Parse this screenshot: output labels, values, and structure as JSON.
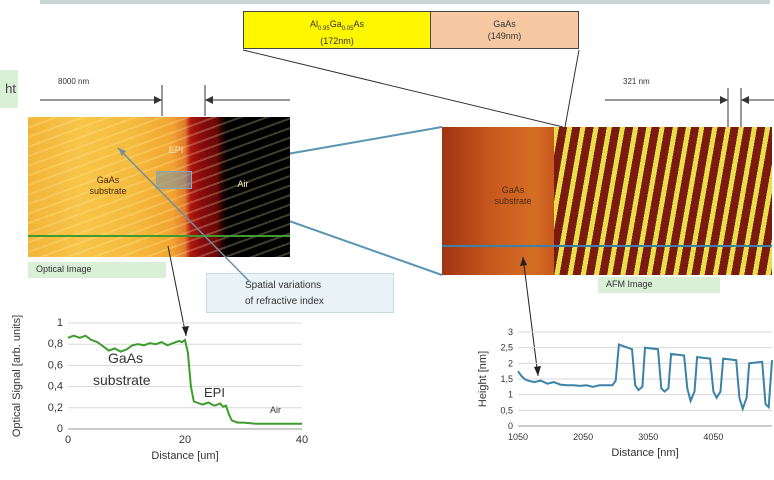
{
  "layers": {
    "algaas_prefix": "Al",
    "algaas_sub1": "0.95",
    "algaas_mid": "Ga",
    "algaas_sub2": "0.05",
    "algaas_suffix": "As",
    "algaas_thickness": "(172nm)",
    "gaas_name": "GaAs",
    "gaas_thickness": "(149nm)"
  },
  "side_badge_text": "ht",
  "optical": {
    "dimension_label": "8000 nm",
    "substrate_label_line1": "GaAs",
    "substrate_label_line2": "substrate",
    "epi_label": "EPI",
    "air_label": "Air",
    "caption": "Optical  Image"
  },
  "afm": {
    "dimension_label": "321 nm",
    "substrate_label_line1": "GaAs",
    "substrate_label_line2": "substrate",
    "caption": "AFM Image"
  },
  "callout": {
    "line1": "Spatial variations",
    "line2": "of refractive index"
  },
  "colors": {
    "optical_line": "#3e9b2e",
    "afm_line": "#3b82a6",
    "algaas_fill": "#fff700",
    "gaas_fill": "#f6c9a3",
    "caption_fill": "#d9efd6"
  },
  "chart_data": [
    {
      "type": "line",
      "ylabel": "Optical Signal [arb. units]",
      "xlabel": "Distance [um]",
      "xlim": [
        0,
        40
      ],
      "ylim": [
        0,
        1
      ],
      "xticks": [
        "0",
        "20",
        "40"
      ],
      "yticks": [
        "0",
        "0,2",
        "0,4",
        "0,6",
        "0,8",
        "1"
      ],
      "annotations": [
        "GaAs",
        "substrate",
        "EPI",
        "Air"
      ],
      "series": [
        {
          "x": [
            0,
            1,
            2,
            3,
            4,
            5,
            6,
            7,
            8,
            9,
            10,
            11,
            12,
            13,
            14,
            15,
            16,
            17,
            18,
            19,
            19.5,
            20,
            20.5,
            21,
            21.5,
            22,
            23,
            24,
            25,
            26,
            26.5,
            27,
            27.5,
            28,
            29,
            30,
            32,
            34,
            36,
            38,
            40
          ],
          "y": [
            0.86,
            0.88,
            0.86,
            0.88,
            0.84,
            0.82,
            0.78,
            0.74,
            0.76,
            0.73,
            0.75,
            0.79,
            0.8,
            0.79,
            0.81,
            0.8,
            0.82,
            0.79,
            0.81,
            0.83,
            0.82,
            0.84,
            0.72,
            0.4,
            0.26,
            0.25,
            0.23,
            0.25,
            0.22,
            0.24,
            0.21,
            0.22,
            0.14,
            0.08,
            0.06,
            0.06,
            0.05,
            0.05,
            0.05,
            0.05,
            0.05
          ]
        }
      ]
    },
    {
      "type": "line",
      "ylabel": "Height [nm]",
      "xlabel": "Distance [nm]",
      "xlim": [
        1050,
        4950
      ],
      "ylim": [
        0,
        3
      ],
      "xticks": [
        "1050",
        "2050",
        "3050",
        "4050"
      ],
      "yticks": [
        "0",
        "0,5",
        "1",
        "1,5",
        "2",
        "2,5",
        "3"
      ],
      "series": [
        {
          "x": [
            1050,
            1100,
            1150,
            1200,
            1300,
            1400,
            1500,
            1600,
            1700,
            1800,
            1900,
            2000,
            2100,
            2200,
            2300,
            2400,
            2500,
            2550,
            2600,
            2800,
            2850,
            2900,
            2960,
            3000,
            3200,
            3250,
            3300,
            3360,
            3400,
            3600,
            3650,
            3700,
            3760,
            3800,
            4000,
            4050,
            4100,
            4160,
            4200,
            4400,
            4450,
            4500,
            4560,
            4600,
            4800,
            4850,
            4900,
            4950
          ],
          "y": [
            1.75,
            1.6,
            1.5,
            1.45,
            1.4,
            1.45,
            1.35,
            1.4,
            1.32,
            1.3,
            1.3,
            1.28,
            1.3,
            1.25,
            1.3,
            1.3,
            1.3,
            1.45,
            2.6,
            2.45,
            1.3,
            1.15,
            1.25,
            2.5,
            2.45,
            1.2,
            1.1,
            1.2,
            2.3,
            2.25,
            1.2,
            0.8,
            1.1,
            2.2,
            2.15,
            1.1,
            0.9,
            1.1,
            2.15,
            2.1,
            0.9,
            0.55,
            0.9,
            2.0,
            2.05,
            0.7,
            0.6,
            2.1
          ]
        }
      ]
    }
  ]
}
